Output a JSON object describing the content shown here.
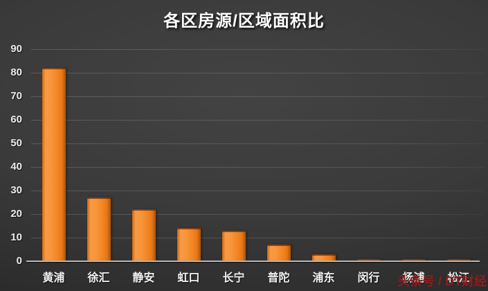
{
  "chart_data": {
    "type": "bar",
    "title": "各区房源/区域面积比",
    "xlabel": "",
    "ylabel": "",
    "categories": [
      "黄浦",
      "徐汇",
      "静安",
      "虹口",
      "长宁",
      "普陀",
      "浦东",
      "闵行",
      "杨浦",
      "松江"
    ],
    "values": [
      82,
      27,
      22,
      14,
      13,
      7,
      3,
      1,
      1,
      1
    ],
    "ylim": [
      0,
      90
    ],
    "yticks": [
      0,
      10,
      20,
      30,
      40,
      50,
      60,
      70,
      80,
      90
    ],
    "grid": true,
    "legend": false,
    "bar_color": "#f28a2e"
  },
  "watermark": {
    "text": "头条号 / DT财经",
    "color": "#8e2020"
  },
  "colors": {
    "background": "#383838",
    "bar_orange": "#f28a2e",
    "bar_edge_dark": "#de6c0e",
    "grid": "rgba(255,255,255,0.14)",
    "baseline": "#b8b8b8",
    "label_text": "#f2f2f2",
    "title_text": "#ffffff",
    "watermark_red": "#8e2020"
  }
}
